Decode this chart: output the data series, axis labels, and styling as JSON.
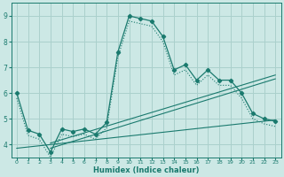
{
  "main_x": [
    0,
    1,
    2,
    3,
    4,
    5,
    6,
    7,
    8,
    9,
    10,
    11,
    12,
    13,
    14,
    15,
    16,
    17,
    18,
    19,
    20,
    21,
    22,
    23
  ],
  "main_y": [
    6.0,
    4.55,
    4.4,
    3.7,
    4.6,
    4.5,
    4.6,
    4.4,
    4.85,
    7.6,
    9.0,
    8.9,
    8.8,
    8.2,
    6.9,
    7.1,
    6.5,
    6.9,
    6.5,
    6.5,
    6.0,
    5.2,
    5.0,
    4.9
  ],
  "dotted_x": [
    0,
    1,
    2,
    3,
    4,
    5,
    6,
    7,
    8,
    9,
    10,
    11,
    12,
    13,
    14,
    15,
    16,
    17,
    18,
    19,
    20,
    21,
    22,
    23
  ],
  "dotted_y": [
    5.8,
    4.35,
    4.2,
    3.5,
    4.4,
    4.3,
    4.4,
    4.2,
    4.65,
    7.4,
    8.8,
    8.7,
    8.6,
    8.0,
    6.7,
    6.9,
    6.3,
    6.7,
    6.3,
    6.3,
    5.8,
    5.0,
    4.8,
    4.7
  ],
  "line1_x": [
    0,
    23
  ],
  "line1_y": [
    3.85,
    4.95
  ],
  "line2_x": [
    3,
    23
  ],
  "line2_y": [
    3.85,
    6.55
  ],
  "line3_x": [
    3,
    23
  ],
  "line3_y": [
    4.05,
    6.7
  ],
  "color_main": "#1a7a6e",
  "bg_color": "#cce8e5",
  "grid_color": "#aad0cc",
  "xlabel": "Humidex (Indice chaleur)",
  "ylim": [
    3.5,
    9.5
  ],
  "xlim": [
    -0.5,
    23.5
  ],
  "yticks": [
    4,
    5,
    6,
    7,
    8,
    9
  ],
  "xticks": [
    0,
    1,
    2,
    3,
    4,
    5,
    6,
    7,
    8,
    9,
    10,
    11,
    12,
    13,
    14,
    15,
    16,
    17,
    18,
    19,
    20,
    21,
    22,
    23
  ]
}
